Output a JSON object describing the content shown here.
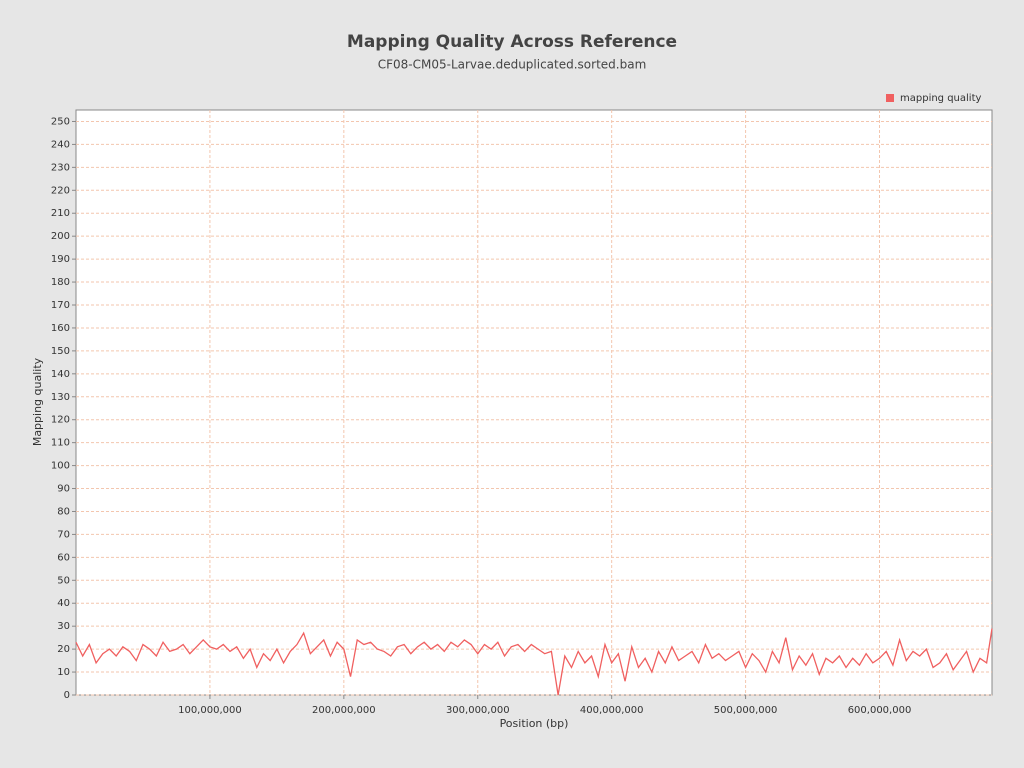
{
  "chart_data": {
    "type": "line",
    "title": "Mapping Quality Across Reference",
    "subtitle": "CF08-CM05-Larvae.deduplicated.sorted.bam",
    "x_label": "Position (bp)",
    "y_label": "Mapping quality",
    "legend": "top-right",
    "grid": true,
    "xlim": [
      0,
      684000000
    ],
    "ylim": [
      0,
      255
    ],
    "xticks": [
      {
        "value": 100000000,
        "label": "100,000,000"
      },
      {
        "value": 200000000,
        "label": "200,000,000"
      },
      {
        "value": 300000000,
        "label": "300,000,000"
      },
      {
        "value": 400000000,
        "label": "400,000,000"
      },
      {
        "value": 500000000,
        "label": "500,000,000"
      },
      {
        "value": 600000000,
        "label": "600,000,000"
      }
    ],
    "yticks": [
      0,
      10,
      20,
      30,
      40,
      50,
      60,
      70,
      80,
      90,
      100,
      110,
      120,
      130,
      140,
      150,
      160,
      170,
      180,
      190,
      200,
      210,
      220,
      230,
      240,
      250
    ],
    "x": [
      0,
      5000000,
      10000000,
      15000000,
      20000000,
      25000000,
      30000000,
      35000000,
      40000000,
      45000000,
      50000000,
      55000000,
      60000000,
      65000000,
      70000000,
      75000000,
      80000000,
      85000000,
      90000000,
      95000000,
      100000000,
      105000000,
      110000000,
      115000000,
      120000000,
      125000000,
      130000000,
      135000000,
      140000000,
      145000000,
      150000000,
      155000000,
      160000000,
      165000000,
      170000000,
      175000000,
      180000000,
      185000000,
      190000000,
      195000000,
      200000000,
      205000000,
      210000000,
      215000000,
      220000000,
      225000000,
      230000000,
      235000000,
      240000000,
      245000000,
      250000000,
      255000000,
      260000000,
      265000000,
      270000000,
      275000000,
      280000000,
      285000000,
      290000000,
      295000000,
      300000000,
      305000000,
      310000000,
      315000000,
      320000000,
      325000000,
      330000000,
      335000000,
      340000000,
      345000000,
      350000000,
      355000000,
      360000000,
      365000000,
      370000000,
      375000000,
      380000000,
      385000000,
      390000000,
      395000000,
      400000000,
      405000000,
      410000000,
      415000000,
      420000000,
      425000000,
      430000000,
      435000000,
      440000000,
      445000000,
      450000000,
      455000000,
      460000000,
      465000000,
      470000000,
      475000000,
      480000000,
      485000000,
      490000000,
      495000000,
      500000000,
      505000000,
      510000000,
      515000000,
      520000000,
      525000000,
      530000000,
      535000000,
      540000000,
      545000000,
      550000000,
      555000000,
      560000000,
      565000000,
      570000000,
      575000000,
      580000000,
      585000000,
      590000000,
      595000000,
      600000000,
      605000000,
      610000000,
      615000000,
      620000000,
      625000000,
      630000000,
      635000000,
      640000000,
      645000000,
      650000000,
      655000000,
      660000000,
      665000000,
      670000000,
      675000000,
      680000000,
      684000000
    ],
    "series": [
      {
        "name": "mapping quality",
        "color": "#f06060",
        "values": [
          23,
          17,
          22,
          14,
          18,
          20,
          17,
          21,
          19,
          15,
          22,
          20,
          17,
          23,
          19,
          20,
          22,
          18,
          21,
          24,
          21,
          20,
          22,
          19,
          21,
          16,
          20,
          12,
          18,
          15,
          20,
          14,
          19,
          22,
          27,
          18,
          21,
          24,
          17,
          23,
          20,
          8,
          24,
          22,
          23,
          20,
          19,
          17,
          21,
          22,
          18,
          21,
          23,
          20,
          22,
          19,
          23,
          21,
          24,
          22,
          18,
          22,
          20,
          23,
          17,
          21,
          22,
          19,
          22,
          20,
          18,
          19,
          0,
          17,
          12,
          19,
          14,
          17,
          8,
          22,
          14,
          18,
          6,
          21,
          12,
          16,
          10,
          19,
          14,
          21,
          15,
          17,
          19,
          14,
          22,
          16,
          18,
          15,
          17,
          19,
          12,
          18,
          15,
          10,
          19,
          14,
          25,
          11,
          17,
          13,
          18,
          9,
          16,
          14,
          17,
          12,
          16,
          13,
          18,
          14,
          16,
          19,
          13,
          24,
          15,
          19,
          17,
          20,
          12,
          14,
          18,
          11,
          15,
          19,
          10,
          16,
          14,
          29
        ]
      }
    ]
  }
}
